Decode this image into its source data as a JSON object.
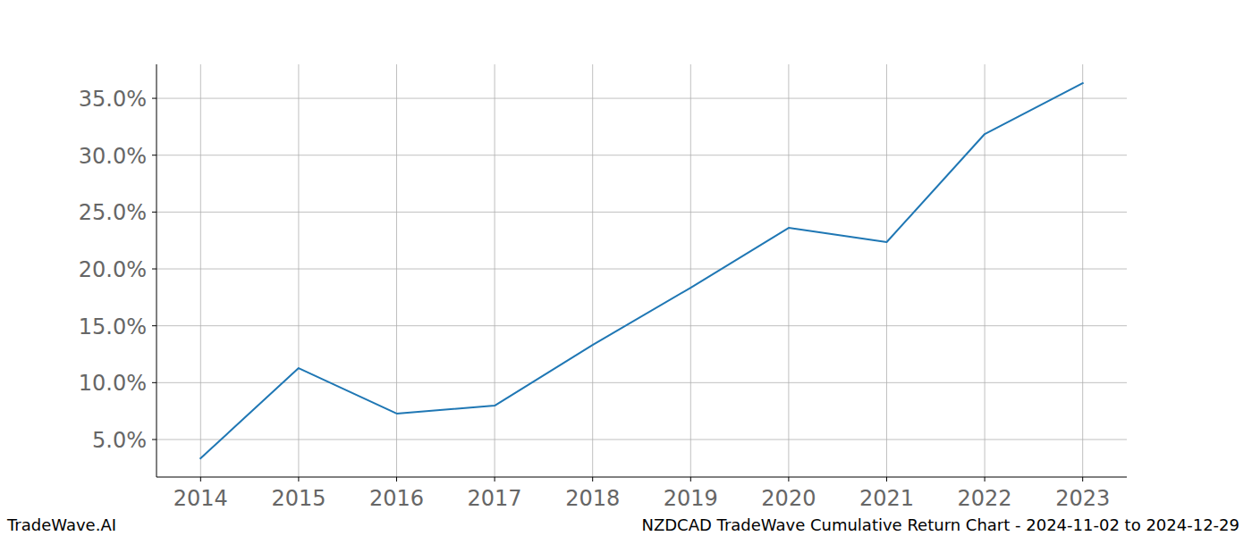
{
  "chart_data": {
    "type": "line",
    "title": "NZDCAD TradeWave Cumulative Return Chart - 2024-11-02 to 2024-12-29",
    "source": "TradeWave.AI",
    "x": [
      2014,
      2015,
      2016,
      2017,
      2018,
      2019,
      2020,
      2021,
      2022,
      2023
    ],
    "series": [
      {
        "name": "NZDCAD",
        "color": "#1f77b4",
        "values": [
          3.35,
          11.28,
          7.28,
          7.98,
          13.32,
          18.35,
          23.61,
          22.36,
          31.86,
          36.34
        ]
      }
    ],
    "xlim": [
      2013.55,
      2023.45
    ],
    "xticks": [
      2014,
      2015,
      2016,
      2017,
      2018,
      2019,
      2020,
      2021,
      2022,
      2023
    ],
    "ylim": [
      1.7,
      37.99
    ],
    "yticks": [
      {
        "value": 5,
        "label": "5.0%"
      },
      {
        "value": 10,
        "label": "10.0%"
      },
      {
        "value": 15,
        "label": "15.0%"
      },
      {
        "value": 20,
        "label": "20.0%"
      },
      {
        "value": 25,
        "label": "25.0%"
      },
      {
        "value": 30,
        "label": "30.0%"
      },
      {
        "value": 35,
        "label": "35.0%"
      }
    ],
    "grid": true
  }
}
